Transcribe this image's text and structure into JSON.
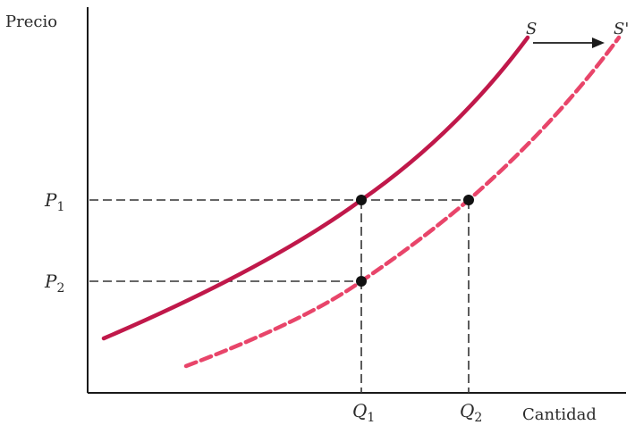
{
  "labels": {
    "y_axis": "Precio",
    "x_axis": "Cantidad",
    "curve_s": "S",
    "curve_s_prime": "S'",
    "p1_main": "P",
    "p1_sub": "1",
    "p2_main": "P",
    "p2_sub": "2",
    "q1_main": "Q",
    "q1_sub": "1",
    "q2_main": "Q",
    "q2_sub": "2"
  },
  "colors": {
    "axis": "#1a1a1a",
    "supply_curve": "#c0184a",
    "shifted_curve": "#e8456a",
    "guide_lines": "#333333",
    "points": "#111111"
  }
}
